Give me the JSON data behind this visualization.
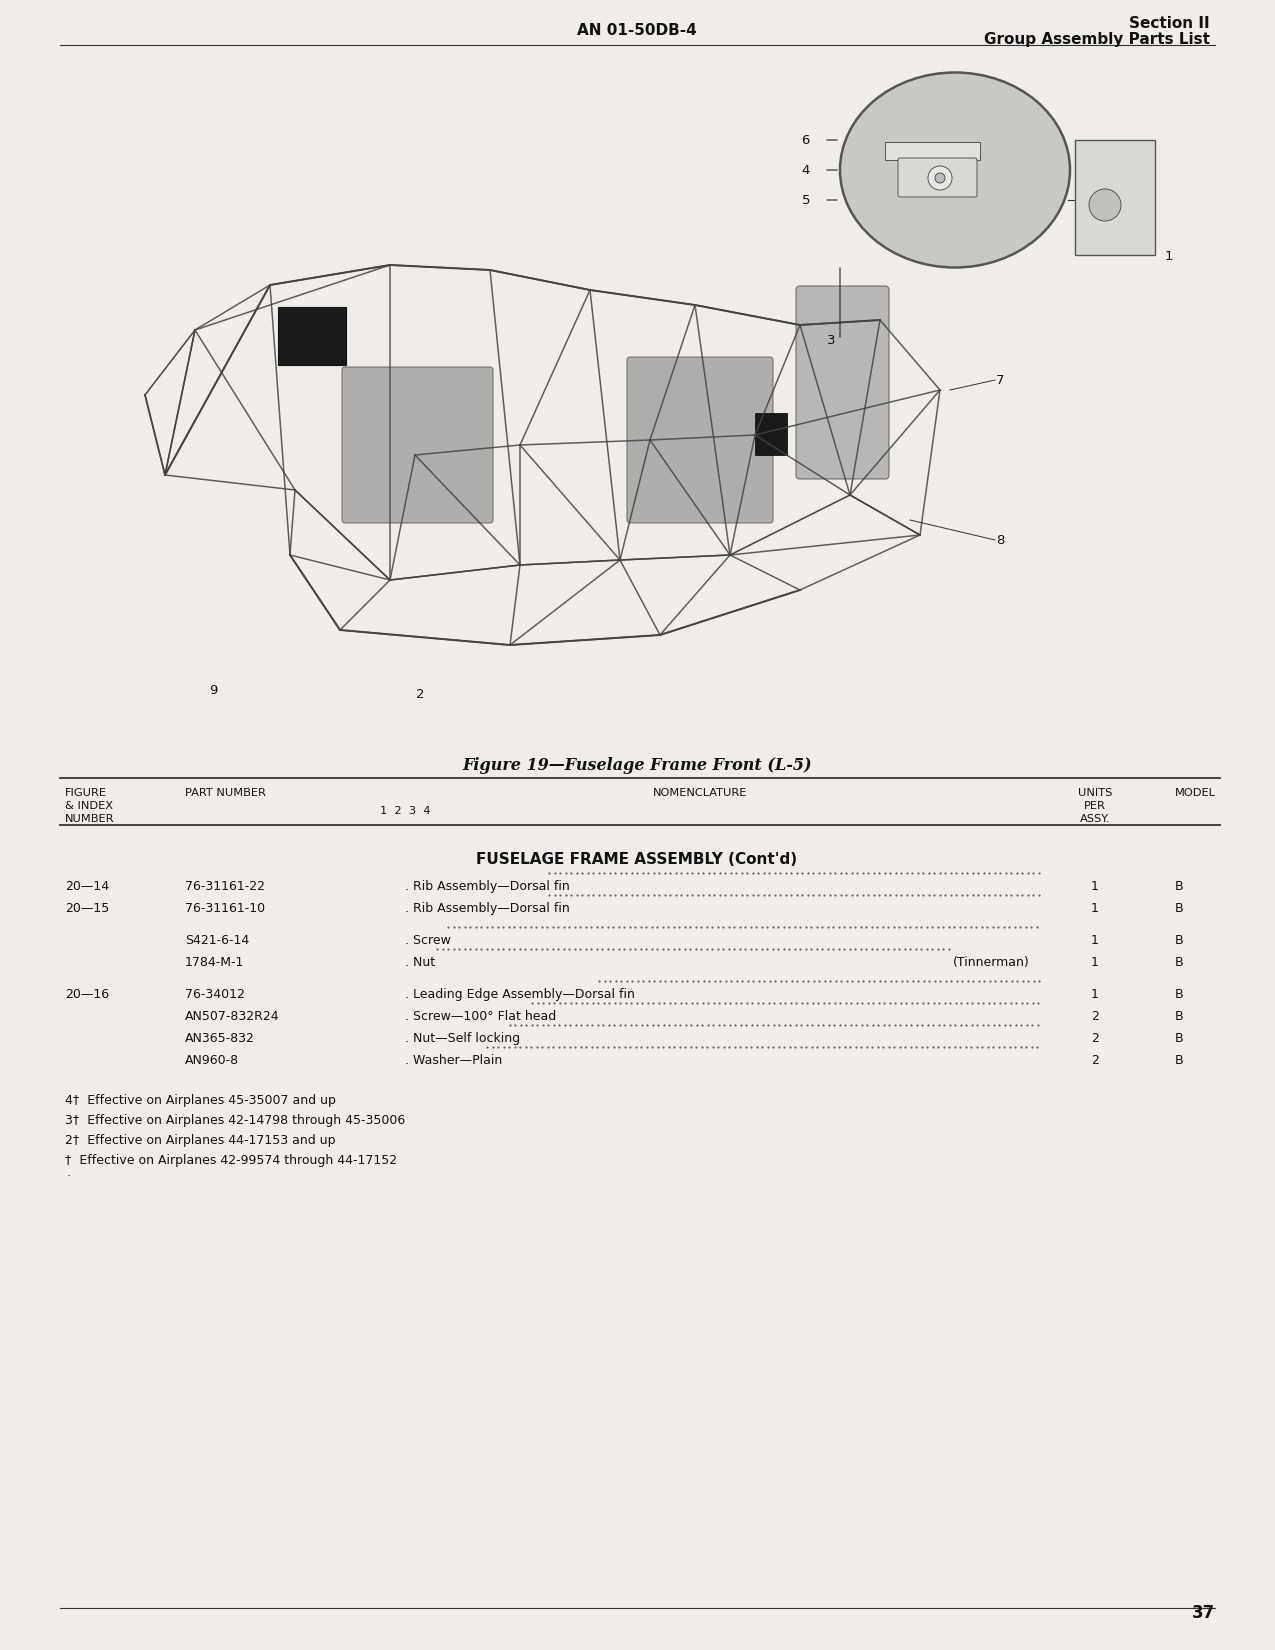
{
  "page_background": "#f0ede8",
  "header_left": "AN 01-50DB-4",
  "header_right_line1": "Section II",
  "header_right_line2": "Group Assembly Parts List",
  "figure_caption": "Figure 19—Fuselage Frame Front (L-5)",
  "section_title": "FUSELAGE FRAME ASSEMBLY (Cont'd)",
  "table_rows": [
    {
      "fig_index": "20—14",
      "part_number": "76-31161-22",
      "nomenclature": ". Rib Assembly—Dorsal fin",
      "extra": "",
      "units": "1",
      "model": "B"
    },
    {
      "fig_index": "20—15",
      "part_number": "76-31161-10",
      "nomenclature": ". Rib Assembly—Dorsal fin",
      "extra": "",
      "units": "1",
      "model": "B"
    },
    {
      "fig_index": "",
      "part_number": "S421-6-14",
      "nomenclature": ". Screw",
      "extra": "",
      "units": "1",
      "model": "B"
    },
    {
      "fig_index": "",
      "part_number": "1784-M-1",
      "nomenclature": ". Nut",
      "extra": "(Tinnerman)",
      "units": "1",
      "model": "B"
    },
    {
      "fig_index": "20—16",
      "part_number": "76-34012",
      "nomenclature": ". Leading Edge Assembly—Dorsal fin",
      "extra": "",
      "units": "1",
      "model": "B"
    },
    {
      "fig_index": "",
      "part_number": "AN507-832R24",
      "nomenclature": ". Screw—100° Flat head",
      "extra": "",
      "units": "2",
      "model": "B"
    },
    {
      "fig_index": "",
      "part_number": "AN365-832",
      "nomenclature": ". Nut—Self locking",
      "extra": "",
      "units": "2",
      "model": "B"
    },
    {
      "fig_index": "",
      "part_number": "AN960-8",
      "nomenclature": ". Washer—Plain",
      "extra": "",
      "units": "2",
      "model": "B"
    }
  ],
  "footnotes": [
    "4†  Effective on Airplanes 45-35007 and up",
    "3†  Effective on Airplanes 42-14798 through 45-35006",
    "2†  Effective on Airplanes 44-17153 and up",
    "†  Effective on Airplanes 42-99574 through 44-17152"
  ],
  "page_number": "37"
}
